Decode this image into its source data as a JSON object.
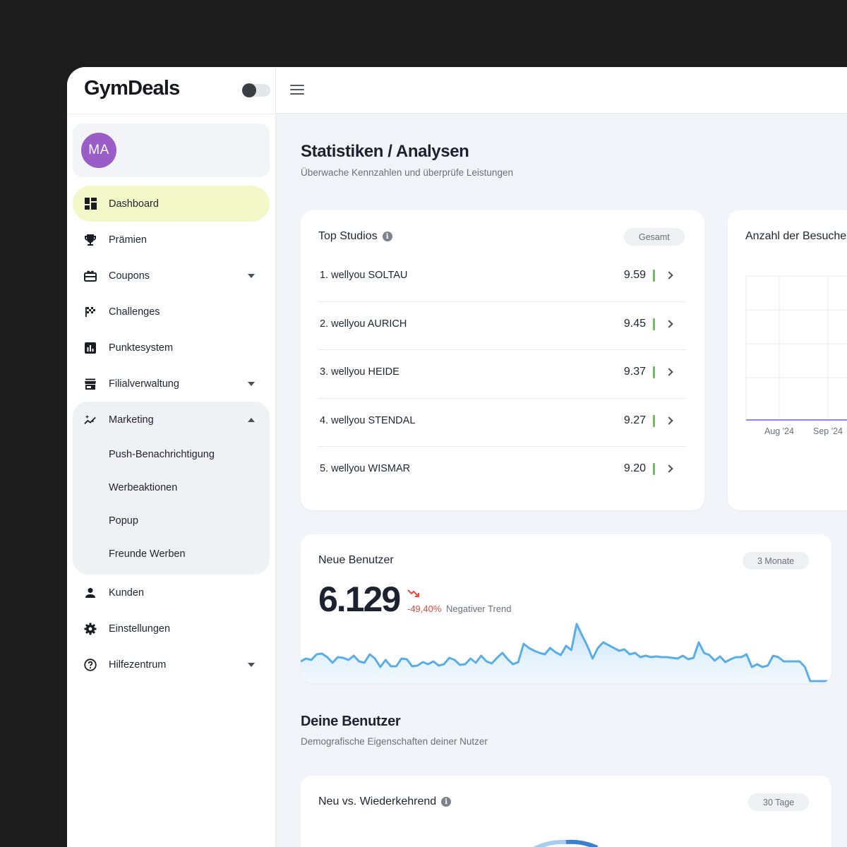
{
  "brand": {
    "name": "GymDeals"
  },
  "profile": {
    "initials": "MA"
  },
  "nav": {
    "items": [
      {
        "label": "Dashboard"
      },
      {
        "label": "Prämien"
      },
      {
        "label": "Coupons"
      },
      {
        "label": "Challenges"
      },
      {
        "label": "Punktesystem"
      },
      {
        "label": "Filialverwaltung"
      },
      {
        "label": "Marketing"
      },
      {
        "label": "Kunden"
      },
      {
        "label": "Einstellungen"
      },
      {
        "label": "Hilfezentrum"
      }
    ],
    "marketing_sub": [
      {
        "label": "Push-Benachrichtigung"
      },
      {
        "label": "Werbeaktionen"
      },
      {
        "label": "Popup"
      },
      {
        "label": "Freunde Werben"
      }
    ]
  },
  "page": {
    "title": "Statistiken / Analysen",
    "subtitle": "Überwache Kennzahlen und überprüfe Leistungen"
  },
  "top_studios": {
    "title": "Top Studios",
    "filter": "Gesamt",
    "rows": [
      {
        "name": "1. wellyou SOLTAU",
        "score": "9.59"
      },
      {
        "name": "2. wellyou AURICH",
        "score": "9.45"
      },
      {
        "name": "3. wellyou HEIDE",
        "score": "9.37"
      },
      {
        "name": "4. wellyou STENDAL",
        "score": "9.27"
      },
      {
        "name": "5. wellyou WISMAR",
        "score": "9.20"
      }
    ]
  },
  "visits": {
    "title": "Anzahl der Besuche",
    "chart_data": {
      "type": "line",
      "categories": [
        "Aug '24",
        "Sep '24"
      ],
      "values": [
        0,
        0
      ],
      "grid": true
    }
  },
  "new_users": {
    "title": "Neue Benutzer",
    "filter": "3 Monate",
    "value": "6.129",
    "trend_pct": "-49,40%",
    "trend_label": "Negativer Trend",
    "chart_data": {
      "type": "area",
      "values": [
        28,
        32,
        30,
        38,
        39,
        34,
        26,
        34,
        33,
        30,
        36,
        28,
        26,
        38,
        32,
        20,
        30,
        21,
        21,
        32,
        31,
        21,
        22,
        27,
        24,
        28,
        22,
        24,
        33,
        30,
        23,
        24,
        32,
        26,
        36,
        28,
        25,
        33,
        40,
        31,
        24,
        27,
        53,
        47,
        43,
        40,
        38,
        47,
        41,
        37,
        50,
        44,
        81,
        65,
        50,
        32,
        47,
        55,
        51,
        47,
        43,
        45,
        38,
        40,
        34,
        36,
        34,
        35,
        34,
        34,
        33,
        32,
        36,
        31,
        33,
        55,
        40,
        37,
        29,
        35,
        27,
        31,
        34,
        34,
        38,
        20,
        24,
        20,
        22,
        36,
        34,
        28,
        28,
        28,
        28,
        20,
        0,
        0,
        0,
        0,
        0
      ]
    }
  },
  "demographics": {
    "title": "Deine Benutzer",
    "subtitle": "Demografische Eigenschaften deiner Nutzer"
  },
  "new_vs_returning": {
    "title": "Neu vs. Wiederkehrend",
    "filter": "30 Tage"
  },
  "colors": {
    "accent_active": "#f2f8c8",
    "avatar": "#9a5cc6",
    "trend_negative": "#e04b3a",
    "score_good": "#6fbf5f",
    "line_blue": "#5aaee8"
  }
}
